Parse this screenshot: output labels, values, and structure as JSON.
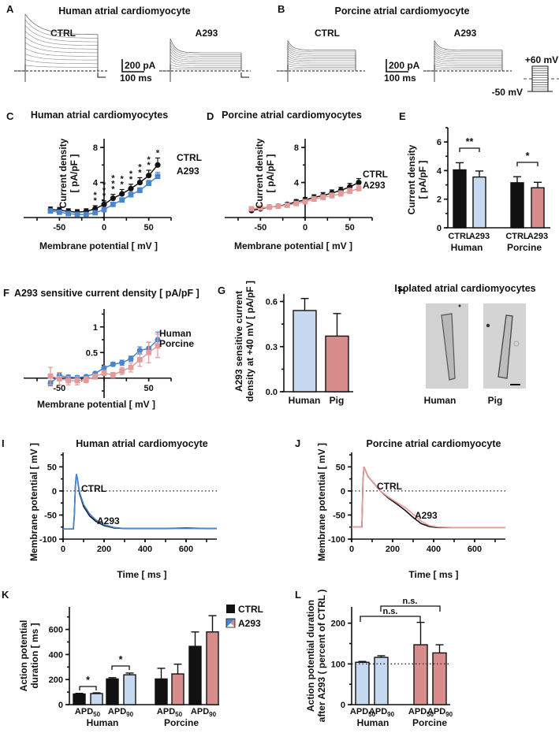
{
  "figure": {
    "panels": [
      "A",
      "B",
      "C",
      "D",
      "E",
      "F",
      "G",
      "H",
      "I",
      "J",
      "K",
      "L"
    ]
  },
  "colors": {
    "ctrl": "#111111",
    "human_a293": "#4a86cf",
    "human_bar": "#c6d9f0",
    "porcine_a293": "#e39a9a",
    "porcine_bar": "#d98c8c"
  },
  "panelA": {
    "letter": "A",
    "title": "Human atrial cardiomyocyte",
    "ctrl_label": "CTRL",
    "a293_label": "A293",
    "scale_current": "200 pA",
    "scale_time": "100 ms"
  },
  "panelB": {
    "letter": "B",
    "title": "Porcine atrial cardiomyocyte",
    "ctrl_label": "CTRL",
    "a293_label": "A293",
    "scale_current": "200 pA",
    "scale_time": "100 ms",
    "protocol_top": "+60 mV",
    "protocol_bottom": "-50 mV"
  },
  "panelH": {
    "letter": "H",
    "title": "Isolated atrial cardiomyocytes",
    "labels": [
      "Human",
      "Pig"
    ]
  },
  "chart_data": [
    {
      "panel": "C",
      "type": "line",
      "title": "Human atrial cardiomyocytes",
      "xlabel": "Membrane potential [ mV ]",
      "ylabel": "Current density\n[ pA/pF ]",
      "xlim": [
        -90,
        75
      ],
      "ylim": [
        0,
        9
      ],
      "xticks": [
        -50,
        0,
        50
      ],
      "yticks": [
        4,
        8
      ],
      "x": [
        -60,
        -50,
        -40,
        -30,
        -20,
        -10,
        0,
        10,
        20,
        30,
        40,
        50,
        60
      ],
      "series": [
        {
          "name": "CTRL",
          "values": [
            0.9,
            0.85,
            0.7,
            0.6,
            0.7,
            1.0,
            1.5,
            2.2,
            2.7,
            3.3,
            4.0,
            4.8,
            6.0
          ],
          "err": [
            0.3,
            0.3,
            0.3,
            0.3,
            0.3,
            0.35,
            0.4,
            0.45,
            0.5,
            0.5,
            0.55,
            0.6,
            0.8
          ]
        },
        {
          "name": "A293",
          "values": [
            0.75,
            0.6,
            0.45,
            0.35,
            0.35,
            0.55,
            0.9,
            1.5,
            2.0,
            2.6,
            3.1,
            3.9,
            4.7
          ],
          "err": [
            0.25,
            0.2,
            0.2,
            0.2,
            0.2,
            0.2,
            0.25,
            0.25,
            0.25,
            0.3,
            0.3,
            0.35,
            0.45
          ]
        }
      ],
      "significance": [
        "",
        "",
        "",
        "",
        "",
        "**",
        "***",
        "***",
        "**",
        "**",
        "**",
        "**",
        "*"
      ]
    },
    {
      "panel": "D",
      "type": "line",
      "title": "Porcine atrial cardiomyocytes",
      "xlabel": "Membrane potential [ mV ]",
      "ylabel": "Current density\n[ pA/pF ]",
      "xlim": [
        -90,
        75
      ],
      "ylim": [
        0,
        9
      ],
      "xticks": [
        -50,
        0,
        50
      ],
      "yticks": [
        4,
        8
      ],
      "x": [
        -60,
        -50,
        -40,
        -30,
        -20,
        -10,
        0,
        10,
        20,
        30,
        40,
        50,
        60
      ],
      "series": [
        {
          "name": "CTRL",
          "values": [
            0.8,
            1.0,
            1.2,
            1.3,
            1.5,
            1.8,
            2.0,
            2.3,
            2.5,
            2.8,
            3.1,
            3.5,
            4.0
          ],
          "err": [
            0.15,
            0.15,
            0.2,
            0.2,
            0.2,
            0.25,
            0.3,
            0.3,
            0.35,
            0.35,
            0.35,
            0.4,
            0.45
          ]
        },
        {
          "name": "A293",
          "values": [
            1.0,
            1.1,
            1.2,
            1.3,
            1.4,
            1.6,
            1.8,
            2.1,
            2.3,
            2.5,
            2.7,
            3.0,
            3.3
          ],
          "err": [
            0.15,
            0.15,
            0.2,
            0.2,
            0.2,
            0.25,
            0.25,
            0.3,
            0.3,
            0.3,
            0.35,
            0.35,
            0.4
          ]
        }
      ]
    },
    {
      "panel": "E",
      "type": "bar",
      "ylabel": "Current density\n[ pA/pF ]",
      "ylim": [
        0,
        7
      ],
      "yticks": [
        0,
        2,
        4,
        6
      ],
      "groups": [
        "Human",
        "Porcine"
      ],
      "categories": [
        "CTRL",
        "A293",
        "CTRL",
        "A293"
      ],
      "values": [
        4.05,
        3.55,
        3.15,
        2.8
      ],
      "err": [
        0.5,
        0.42,
        0.42,
        0.38
      ],
      "significance": [
        "**",
        "*"
      ]
    },
    {
      "panel": "F",
      "type": "line",
      "title": "A293 sensitive current  density [ pA/pF ]",
      "xlabel": "Membrane potential [ mV ]",
      "xlim": [
        -90,
        75
      ],
      "ylim": [
        -0.25,
        1.35
      ],
      "xticks": [
        -50,
        50
      ],
      "yticks": [
        0.5,
        1.0
      ],
      "x": [
        -60,
        -50,
        -40,
        -30,
        -20,
        -10,
        0,
        10,
        20,
        30,
        40,
        50,
        60
      ],
      "series": [
        {
          "name": "Human",
          "values": [
            -0.1,
            0.05,
            0.02,
            0.01,
            0.03,
            0.09,
            0.2,
            0.27,
            0.3,
            0.38,
            0.54,
            0.58,
            0.75
          ],
          "err": [
            0.05,
            0.05,
            0.04,
            0.04,
            0.03,
            0.03,
            0.03,
            0.04,
            0.05,
            0.05,
            0.07,
            0.12,
            0.15
          ]
        },
        {
          "name": "Porcine",
          "values": [
            0.04,
            -0.01,
            -0.05,
            -0.05,
            -0.03,
            0.03,
            0.1,
            0.06,
            0.14,
            0.21,
            0.36,
            0.5,
            0.63
          ],
          "err": [
            0.17,
            0.12,
            0.08,
            0.08,
            0.06,
            0.05,
            0.05,
            0.05,
            0.07,
            0.09,
            0.13,
            0.2,
            0.23
          ]
        }
      ]
    },
    {
      "panel": "G",
      "type": "bar",
      "ylabel": "A293 sensitive current\ndensity at +40 mV [ pA/pF ]",
      "ylim": [
        0,
        0.65
      ],
      "yticks": [
        0.0,
        0.3,
        0.6
      ],
      "categories": [
        "Human",
        "Pig"
      ],
      "values": [
        0.54,
        0.37
      ],
      "err": [
        0.08,
        0.15
      ]
    },
    {
      "panel": "I",
      "type": "line",
      "title": "Human atrial cardiomyocyte",
      "xlabel": "Time [ ms ]",
      "ylabel": "Membrane potential [ mV ]",
      "xlim": [
        0,
        750
      ],
      "ylim": [
        -100,
        80
      ],
      "xticks": [
        0,
        200,
        400,
        600
      ],
      "yticks": [
        -100,
        -50,
        0,
        50
      ],
      "reference_line": 0,
      "series": [
        {
          "name": "CTRL",
          "x": [
            0,
            50,
            55,
            60,
            65,
            70,
            80,
            100,
            130,
            160,
            200,
            250,
            300,
            400,
            500,
            600,
            700,
            750
          ],
          "values": [
            -79,
            -79,
            -50,
            10,
            35,
            25,
            -5,
            -32,
            -52,
            -63,
            -72,
            -77,
            -78,
            -78,
            -78,
            -77,
            -78,
            -78
          ]
        },
        {
          "name": "A293",
          "x": [
            0,
            50,
            55,
            60,
            65,
            70,
            80,
            100,
            130,
            160,
            200,
            250,
            300,
            400,
            500,
            600,
            700,
            750
          ],
          "values": [
            -79,
            -79,
            -50,
            10,
            35,
            26,
            -2,
            -28,
            -48,
            -60,
            -70,
            -76,
            -78,
            -78,
            -78,
            -78,
            -78,
            -78
          ]
        }
      ]
    },
    {
      "panel": "J",
      "type": "line",
      "title": "Porcine atrial cardiomyocyte",
      "xlabel": "Time [ ms ]",
      "ylabel": "Membrane potential [ mV ]",
      "xlim": [
        0,
        750
      ],
      "ylim": [
        -100,
        80
      ],
      "xticks": [
        0,
        200,
        400,
        600
      ],
      "yticks": [
        -100,
        -50,
        0,
        50
      ],
      "reference_line": 0,
      "series": [
        {
          "name": "CTRL",
          "x": [
            0,
            50,
            55,
            60,
            80,
            100,
            140,
            180,
            220,
            260,
            300,
            340,
            380,
            420,
            500,
            600,
            750
          ],
          "values": [
            -75,
            -75,
            20,
            50,
            30,
            20,
            0,
            -15,
            -27,
            -40,
            -55,
            -68,
            -74,
            -76,
            -76,
            -76,
            -76
          ]
        },
        {
          "name": "A293",
          "x": [
            0,
            50,
            55,
            60,
            80,
            100,
            140,
            180,
            220,
            260,
            300,
            340,
            380,
            420,
            500,
            600,
            750
          ],
          "values": [
            -75,
            -75,
            20,
            50,
            30,
            20,
            0,
            -13,
            -24,
            -34,
            -48,
            -63,
            -72,
            -75,
            -76,
            -76,
            -76
          ]
        }
      ]
    },
    {
      "panel": "K",
      "type": "bar",
      "ylabel": "Action potential\nduration [ ms ]",
      "ylim": [
        0,
        780
      ],
      "yticks": [
        0,
        200,
        400,
        600
      ],
      "groups": [
        "Human",
        "Porcine"
      ],
      "categories": [
        "APD50",
        "APD90",
        "APD50",
        "APD90"
      ],
      "legend": [
        "CTRL",
        "A293"
      ],
      "legend_position": "top-right",
      "series": [
        {
          "name": "CTRL",
          "values": [
            85,
            205,
            205,
            465
          ],
          "err": [
            5,
            10,
            85,
            115
          ]
        },
        {
          "name": "A293",
          "values": [
            88,
            238,
            245,
            580
          ],
          "err": [
            6,
            14,
            78,
            130
          ]
        }
      ],
      "significance": [
        "*",
        "*",
        "",
        ""
      ]
    },
    {
      "panel": "L",
      "type": "bar",
      "ylabel": "Action potential duration\nafter A293 ( percent of CTRL )",
      "ylim": [
        0,
        240
      ],
      "yticks": [
        0,
        100,
        200
      ],
      "groups": [
        "Human",
        "Porcine"
      ],
      "categories": [
        "APD50",
        "APD90",
        "APD50",
        "APD90"
      ],
      "values": [
        104,
        116,
        147,
        127
      ],
      "err": [
        2,
        4,
        55,
        20
      ],
      "reference_line": 100,
      "significance": [
        {
          "from": "Human APD50",
          "to": "Porcine APD50",
          "label": "n.s."
        },
        {
          "from": "Human APD90",
          "to": "Porcine APD90",
          "label": "n.s."
        }
      ]
    }
  ]
}
